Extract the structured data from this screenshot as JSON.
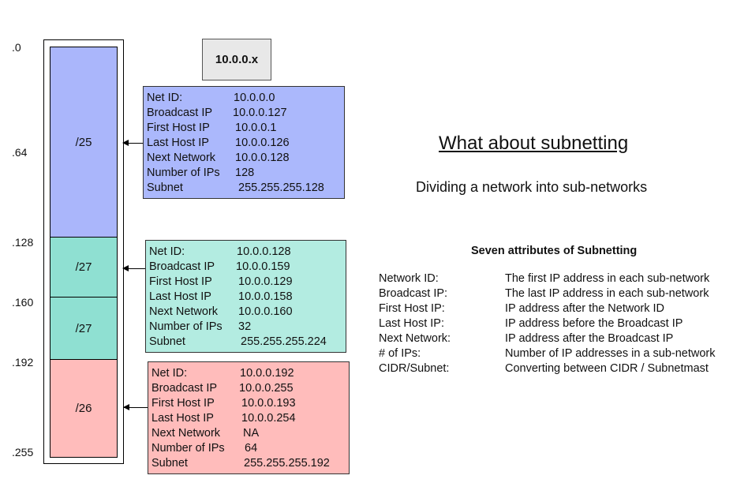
{
  "scale_ticks": [
    ".0",
    ".64",
    ".128",
    ".160",
    ".192",
    ".255"
  ],
  "segments": [
    {
      "label": "/25",
      "color": "#aab6fb"
    },
    {
      "label": "/27",
      "color": "#8fe0d2"
    },
    {
      "label": "/27",
      "color": "#8fe0d2"
    },
    {
      "label": "/26",
      "color": "#ffbcbb"
    }
  ],
  "network_label": "10.0.0.x",
  "subnets": [
    {
      "color": "#abb8fc",
      "rows": [
        {
          "key": "Net ID:",
          "value": "10.0.0.0"
        },
        {
          "key": "Broadcast IP",
          "value": "10.0.0.127"
        },
        {
          "key": "First Host IP",
          "value": "10.0.0.1"
        },
        {
          "key": "Last Host IP",
          "value": "10.0.0.126"
        },
        {
          "key": "Next Network",
          "value": "10.0.0.128"
        },
        {
          "key": "Number of IPs",
          "value": "128"
        },
        {
          "key": "Subnet",
          "value": "255.255.255.128"
        }
      ]
    },
    {
      "color": "#b3ece1",
      "rows": [
        {
          "key": "Net ID:",
          "value": "10.0.0.128"
        },
        {
          "key": "Broadcast IP",
          "value": "10.0.0.159"
        },
        {
          "key": "First Host IP",
          "value": "10.0.0.129"
        },
        {
          "key": "Last Host IP",
          "value": "10.0.0.158"
        },
        {
          "key": "Next Network",
          "value": "10.0.0.160"
        },
        {
          "key": "Number of IPs",
          "value": "32"
        },
        {
          "key": "Subnet",
          "value": "255.255.255.224"
        }
      ]
    },
    {
      "color": "#ffbcbb",
      "rows": [
        {
          "key": "Net ID:",
          "value": "10.0.0.192"
        },
        {
          "key": "Broadcast IP",
          "value": "10.0.0.255"
        },
        {
          "key": "First Host IP",
          "value": "10.0.0.193"
        },
        {
          "key": "Last Host IP",
          "value": "10.0.0.254"
        },
        {
          "key": "Next Network",
          "value": "NA"
        },
        {
          "key": "Number of IPs",
          "value": "64"
        },
        {
          "key": "Subnet",
          "value": "255.255.255.192"
        }
      ]
    }
  ],
  "title": "What about subnetting",
  "subtitle": "Dividing a network into sub-networks",
  "attributes_heading": "Seven attributes of Subnetting",
  "attributes": [
    {
      "term": "Network ID:",
      "description": "The first IP address in each sub-network"
    },
    {
      "term": "Broadcast IP:",
      "description": "The last IP address in each sub-network"
    },
    {
      "term": "First Host IP:",
      "description": "IP address after the Network ID"
    },
    {
      "term": "Last Host IP:",
      "description": "IP address before the Broadcast IP"
    },
    {
      "term": "Next Network:",
      "description": "IP address after the Broadcast IP"
    },
    {
      "term": "# of IPs:",
      "description": "Number of IP addresses in a sub-network"
    },
    {
      "term": "CIDR/Subnet:",
      "description": "Converting between CIDR / Subnetmast"
    }
  ]
}
